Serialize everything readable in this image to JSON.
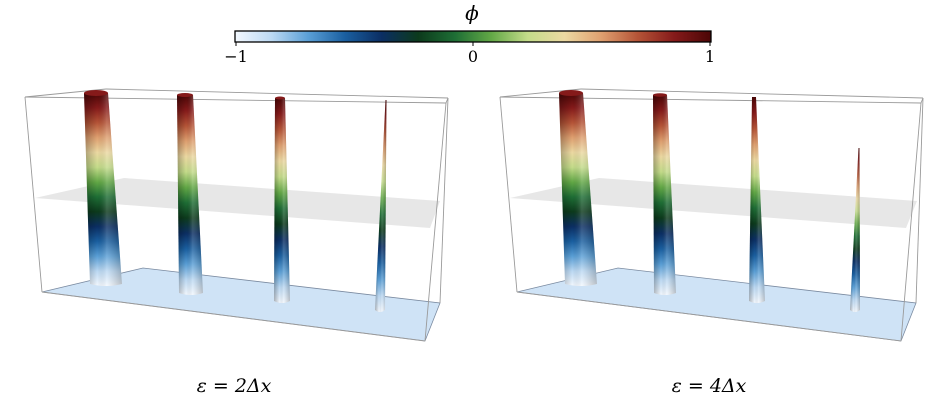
{
  "colorbar": {
    "symbol": "ϕ",
    "ticks": [
      "−1",
      "0",
      "1"
    ],
    "colormap": [
      "#f3f8fe",
      "#bcd9f3",
      "#5a9fd6",
      "#1a5fa0",
      "#0b2e63",
      "#0c3a1c",
      "#1e6e35",
      "#62a846",
      "#c4dc8a",
      "#ecd9a2",
      "#dfa070",
      "#b55437",
      "#851a1a",
      "#4b0606"
    ]
  },
  "panels": [
    {
      "caption": "ε = 2Δx"
    },
    {
      "caption": "ε = 4Δx"
    }
  ],
  "colors": {
    "box_edge": "#9a9a9a",
    "mid_plane": "#e3e3e3",
    "bottom_plane": "#cfe3f6"
  }
}
